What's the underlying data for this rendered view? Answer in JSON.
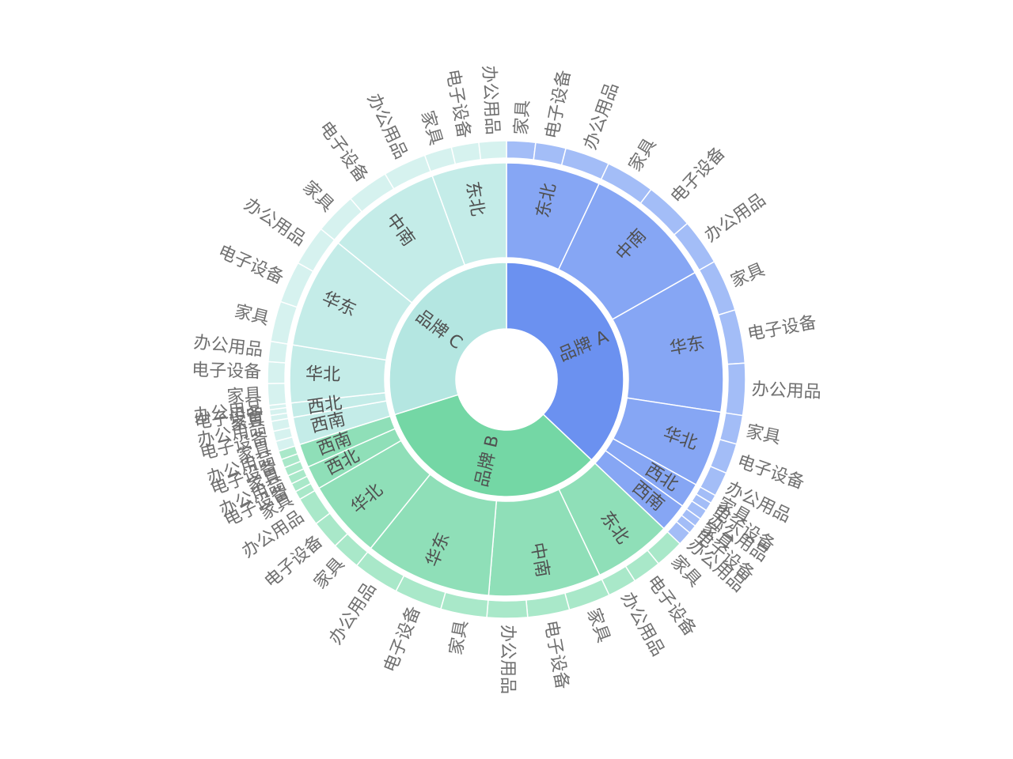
{
  "chart_data": {
    "type": "sunburst",
    "colors": {
      "品牌 A": "#6b91f0",
      "品牌 B": "#74d7a5",
      "品牌 C": "#b4e6e1",
      "品牌 A-region": "#86a6f4",
      "品牌 B-region": "#8fdfb8",
      "品牌 C-region": "#c4ece8",
      "品牌 A-leaf": "#a3bdf7",
      "品牌 B-leaf": "#a9e8c9",
      "品牌 C-leaf": "#d6f2ef"
    },
    "brands": [
      {
        "name": "品牌 A",
        "regions": [
          {
            "name": "东北",
            "items": [
              {
                "name": "家具",
                "value": 20
              },
              {
                "name": "电子设备",
                "value": 21
              },
              {
                "name": "办公用品",
                "value": 31
              }
            ]
          },
          {
            "name": "中南",
            "items": [
              {
                "name": "家具",
                "value": 34
              },
              {
                "name": "电子设备",
                "value": 34
              },
              {
                "name": "办公用品",
                "value": 32
              }
            ]
          },
          {
            "name": "华东",
            "items": [
              {
                "name": "家具",
                "value": 36
              },
              {
                "name": "电子设备",
                "value": 37
              },
              {
                "name": "办公用品",
                "value": 36
              }
            ]
          },
          {
            "name": "华北",
            "items": [
              {
                "name": "家具",
                "value": 20
              },
              {
                "name": "电子设备",
                "value": 21
              },
              {
                "name": "办公用品",
                "value": 17
              }
            ]
          },
          {
            "name": "西北",
            "items": [
              {
                "name": "家具",
                "value": 6
              },
              {
                "name": "电子设备",
                "value": 6
              },
              {
                "name": "办公用品",
                "value": 7
              }
            ]
          },
          {
            "name": "西南",
            "items": [
              {
                "name": "家具",
                "value": 6
              },
              {
                "name": "电子设备",
                "value": 6
              },
              {
                "name": "办公用品",
                "value": 10
              }
            ]
          }
        ]
      },
      {
        "name": "品牌 B",
        "regions": [
          {
            "name": "东北",
            "items": [
              {
                "name": "家具",
                "value": 20
              },
              {
                "name": "电子设备",
                "value": 20
              },
              {
                "name": "办公用品",
                "value": 20
              }
            ]
          },
          {
            "name": "中南",
            "items": [
              {
                "name": "家具",
                "value": 29
              },
              {
                "name": "电子设备",
                "value": 29
              },
              {
                "name": "办公用品",
                "value": 28
              }
            ]
          },
          {
            "name": "华东",
            "items": [
              {
                "name": "家具",
                "value": 32
              },
              {
                "name": "电子设备",
                "value": 33
              },
              {
                "name": "办公用品",
                "value": 32
              }
            ]
          },
          {
            "name": "华北",
            "items": [
              {
                "name": "家具",
                "value": 20
              },
              {
                "name": "电子设备",
                "value": 20
              },
              {
                "name": "办公用品",
                "value": 20
              }
            ]
          },
          {
            "name": "西北",
            "items": [
              {
                "name": "家具",
                "value": 6
              },
              {
                "name": "电子设备",
                "value": 6
              },
              {
                "name": "办公用品",
                "value": 6
              }
            ]
          },
          {
            "name": "西南",
            "items": [
              {
                "name": "家具",
                "value": 6
              },
              {
                "name": "电子设备",
                "value": 6
              },
              {
                "name": "办公用品",
                "value": 6
              }
            ]
          }
        ]
      },
      {
        "name": "品牌 C",
        "regions": [
          {
            "name": "西南",
            "items": [
              {
                "name": "家具",
                "value": 7
              },
              {
                "name": "电子设备",
                "value": 7
              },
              {
                "name": "办公用品",
                "value": 7
              }
            ]
          },
          {
            "name": "西北",
            "items": [
              {
                "name": "家具",
                "value": 4
              },
              {
                "name": "电子设备",
                "value": 4
              },
              {
                "name": "办公用品",
                "value": 3
              }
            ]
          },
          {
            "name": "华北",
            "items": [
              {
                "name": "家具",
                "value": 15
              },
              {
                "name": "电子设备",
                "value": 15
              },
              {
                "name": "办公用品",
                "value": 14
              }
            ]
          },
          {
            "name": "华东",
            "items": [
              {
                "name": "家具",
                "value": 28
              },
              {
                "name": "电子设备",
                "value": 29
              },
              {
                "name": "办公用品",
                "value": 28
              }
            ]
          },
          {
            "name": "中南",
            "items": [
              {
                "name": "家具",
                "value": 29
              },
              {
                "name": "电子设备",
                "value": 29
              },
              {
                "name": "办公用品",
                "value": 30
              }
            ]
          },
          {
            "name": "东北",
            "items": [
              {
                "name": "家具",
                "value": 19
              },
              {
                "name": "电子设备",
                "value": 19
              },
              {
                "name": "办公用品",
                "value": 19
              }
            ]
          }
        ]
      }
    ]
  }
}
